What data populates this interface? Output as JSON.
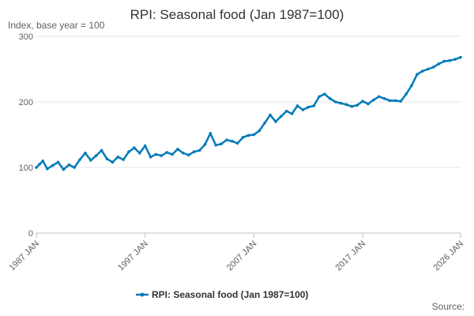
{
  "chart_data": {
    "type": "line",
    "title": "RPI: Seasonal food (Jan 1987=100)",
    "ylabel": "Index, base year = 100",
    "xlabel": "",
    "ylim": [
      0,
      300
    ],
    "yticks": [
      0,
      100,
      200,
      300
    ],
    "xlim": [
      1987.0,
      2026.0
    ],
    "xticks": [
      {
        "value": 1987.0,
        "label": "1987 JAN"
      },
      {
        "value": 1997.0,
        "label": "1997 JAN"
      },
      {
        "value": 2007.0,
        "label": "2007 JAN"
      },
      {
        "value": 2017.0,
        "label": "2017 JAN"
      },
      {
        "value": 2026.0,
        "label": "2026 JAN"
      }
    ],
    "grid": true,
    "legend_position": "bottom",
    "series": [
      {
        "name": "RPI: Seasonal food (Jan 1987=100)",
        "color": "#007ab8",
        "x": [
          1987.0,
          1987.3,
          1987.6,
          1988.0,
          1988.5,
          1989.0,
          1989.5,
          1990.0,
          1990.5,
          1991.0,
          1991.5,
          1992.0,
          1992.5,
          1993.0,
          1993.5,
          1994.0,
          1994.5,
          1995.0,
          1995.5,
          1996.0,
          1996.5,
          1997.0,
          1997.5,
          1998.0,
          1998.5,
          1999.0,
          1999.5,
          2000.0,
          2000.5,
          2001.0,
          2001.5,
          2002.0,
          2002.5,
          2003.0,
          2003.5,
          2004.0,
          2004.5,
          2005.0,
          2005.5,
          2006.0,
          2006.5,
          2007.0,
          2007.5,
          2008.0,
          2008.5,
          2009.0,
          2009.5,
          2010.0,
          2010.5,
          2011.0,
          2011.5,
          2012.0,
          2012.5,
          2013.0,
          2013.5,
          2014.0,
          2014.5,
          2015.0,
          2015.5,
          2016.0,
          2016.5,
          2017.0,
          2017.5,
          2018.0,
          2018.5,
          2019.0,
          2019.5,
          2020.0,
          2020.5,
          2021.0,
          2021.5,
          2022.0,
          2022.5,
          2023.0,
          2023.5,
          2024.0,
          2024.5,
          2025.0,
          2025.5,
          2026.0
        ],
        "values": [
          100,
          105,
          110,
          98,
          103,
          108,
          97,
          104,
          100,
          112,
          122,
          111,
          118,
          126,
          113,
          108,
          116,
          112,
          124,
          130,
          122,
          133,
          116,
          120,
          118,
          123,
          120,
          128,
          122,
          119,
          124,
          126,
          135,
          152,
          134,
          136,
          142,
          140,
          137,
          146,
          149,
          150,
          156,
          168,
          180,
          170,
          178,
          186,
          182,
          194,
          188,
          192,
          194,
          208,
          212,
          205,
          200,
          198,
          196,
          193,
          195,
          201,
          197,
          203,
          208,
          205,
          202,
          202,
          201,
          212,
          225,
          242,
          247,
          250,
          253,
          258,
          262,
          263,
          265,
          268
        ]
      }
    ]
  },
  "source_label": "Source:"
}
